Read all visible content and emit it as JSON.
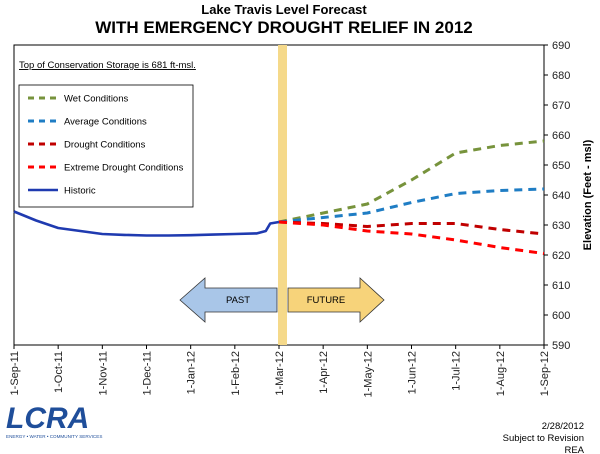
{
  "chart_data": {
    "type": "line",
    "title": "WITH EMERGENCY DROUGHT RELIEF IN 2012",
    "subtitle": "Lake Travis Level Forecast",
    "ylabel": "Elevation (Feet - msl)",
    "ylim": [
      590,
      690
    ],
    "yticks": [
      590,
      600,
      610,
      620,
      630,
      640,
      650,
      660,
      670,
      680,
      690
    ],
    "x_ticks": [
      "1-Sep-11",
      "1-Oct-11",
      "1-Nov-11",
      "1-Dec-11",
      "1-Jan-12",
      "1-Feb-12",
      "1-Mar-12",
      "1-Apr-12",
      "1-May-12",
      "1-Jun-12",
      "1-Jul-12",
      "1-Aug-12",
      "1-Sep-12"
    ],
    "annotation": "Top of Conservation Storage is 681 ft-msl.",
    "current_date_marker": "1-Mar-12",
    "past_label": "PAST",
    "future_label": "FUTURE",
    "series": [
      {
        "name": "Wet Conditions",
        "color": "#77933c",
        "dash": true,
        "x": [
          6.0,
          7.0,
          8.0,
          9.0,
          10.0,
          11.0,
          12.0
        ],
        "y": [
          631,
          634,
          637,
          645,
          654,
          656.5,
          658
        ]
      },
      {
        "name": "Average Conditions",
        "color": "#1f7dc4",
        "dash": true,
        "x": [
          6.0,
          7.0,
          8.0,
          9.0,
          10.0,
          11.0,
          12.0
        ],
        "y": [
          631,
          632.5,
          634,
          637.5,
          640.5,
          641.5,
          642
        ]
      },
      {
        "name": "Drought Conditions",
        "color": "#c00000",
        "dash": true,
        "x": [
          6.0,
          7.0,
          8.0,
          9.0,
          10.0,
          11.0,
          12.0
        ],
        "y": [
          631,
          630.5,
          629.5,
          630.5,
          630.5,
          628.5,
          627
        ]
      },
      {
        "name": "Extreme Drought Conditions",
        "color": "#ff0000",
        "dash": true,
        "x": [
          6.0,
          7.0,
          8.0,
          9.0,
          10.0,
          11.0,
          12.0
        ],
        "y": [
          631,
          630,
          628,
          627,
          625,
          622.5,
          620.5
        ]
      },
      {
        "name": "Historic",
        "color": "#1f3ab0",
        "dash": false,
        "x": [
          0.0,
          0.5,
          1.0,
          1.5,
          2.0,
          2.5,
          3.0,
          3.5,
          4.0,
          4.5,
          5.0,
          5.5,
          5.7,
          5.8,
          6.0
        ],
        "y": [
          634.5,
          631.5,
          629,
          628,
          627,
          626.7,
          626.5,
          626.5,
          626.6,
          626.8,
          627,
          627.2,
          628,
          630.5,
          631
        ]
      }
    ]
  },
  "footer": {
    "logo_text": "LCRA",
    "logo_tagline": "ENERGY • WATER • COMMUNITY SERVICES",
    "date": "2/28/2012",
    "revision": "Subject to Revision",
    "author": "REA"
  },
  "colors": {
    "marker_band": "#f5d98a",
    "past_arrow": "#a9c6e8",
    "future_arrow": "#f7d37a",
    "logo_blue": "#1f4e9a"
  }
}
